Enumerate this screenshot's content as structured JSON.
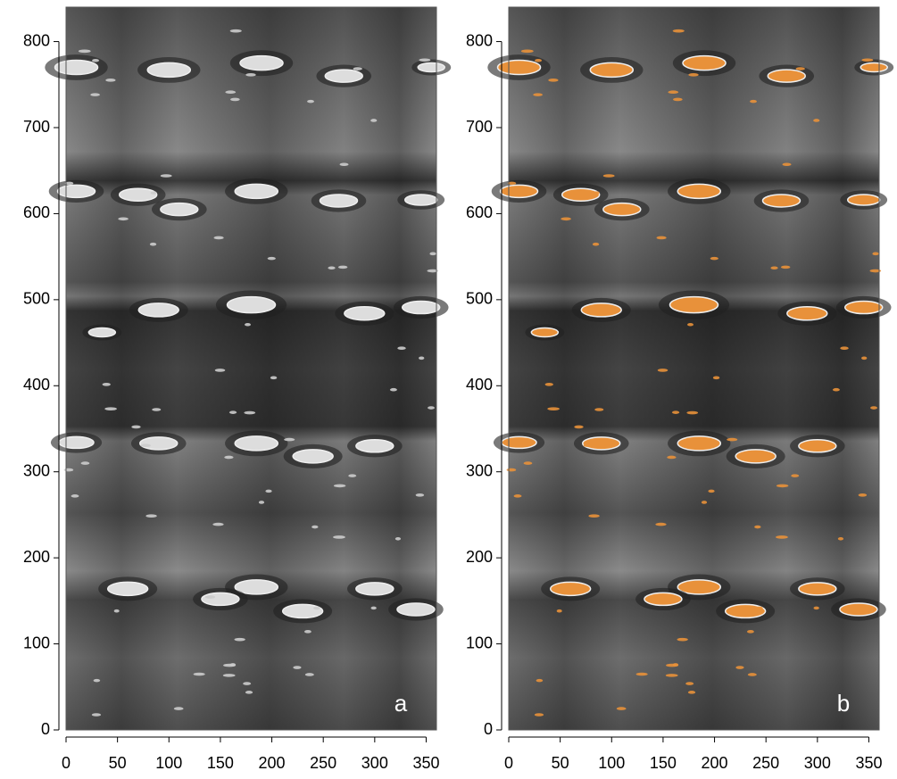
{
  "chart_data": [
    {
      "type": "image",
      "panel_label": "a",
      "xlim": [
        0,
        360
      ],
      "ylim": [
        0,
        840
      ],
      "xticks": [
        0,
        50,
        100,
        150,
        200,
        250,
        300,
        350
      ],
      "yticks": [
        0,
        100,
        200,
        300,
        400,
        500,
        600,
        700,
        800
      ]
    },
    {
      "type": "image",
      "panel_label": "b",
      "highlight_color": "#e8913a",
      "xlim": [
        0,
        360
      ],
      "ylim": [
        0,
        840
      ],
      "xticks": [
        0,
        50,
        100,
        150,
        200,
        250,
        300,
        350
      ],
      "yticks": [
        0,
        100,
        200,
        300,
        400,
        500,
        600,
        700,
        800
      ]
    }
  ]
}
